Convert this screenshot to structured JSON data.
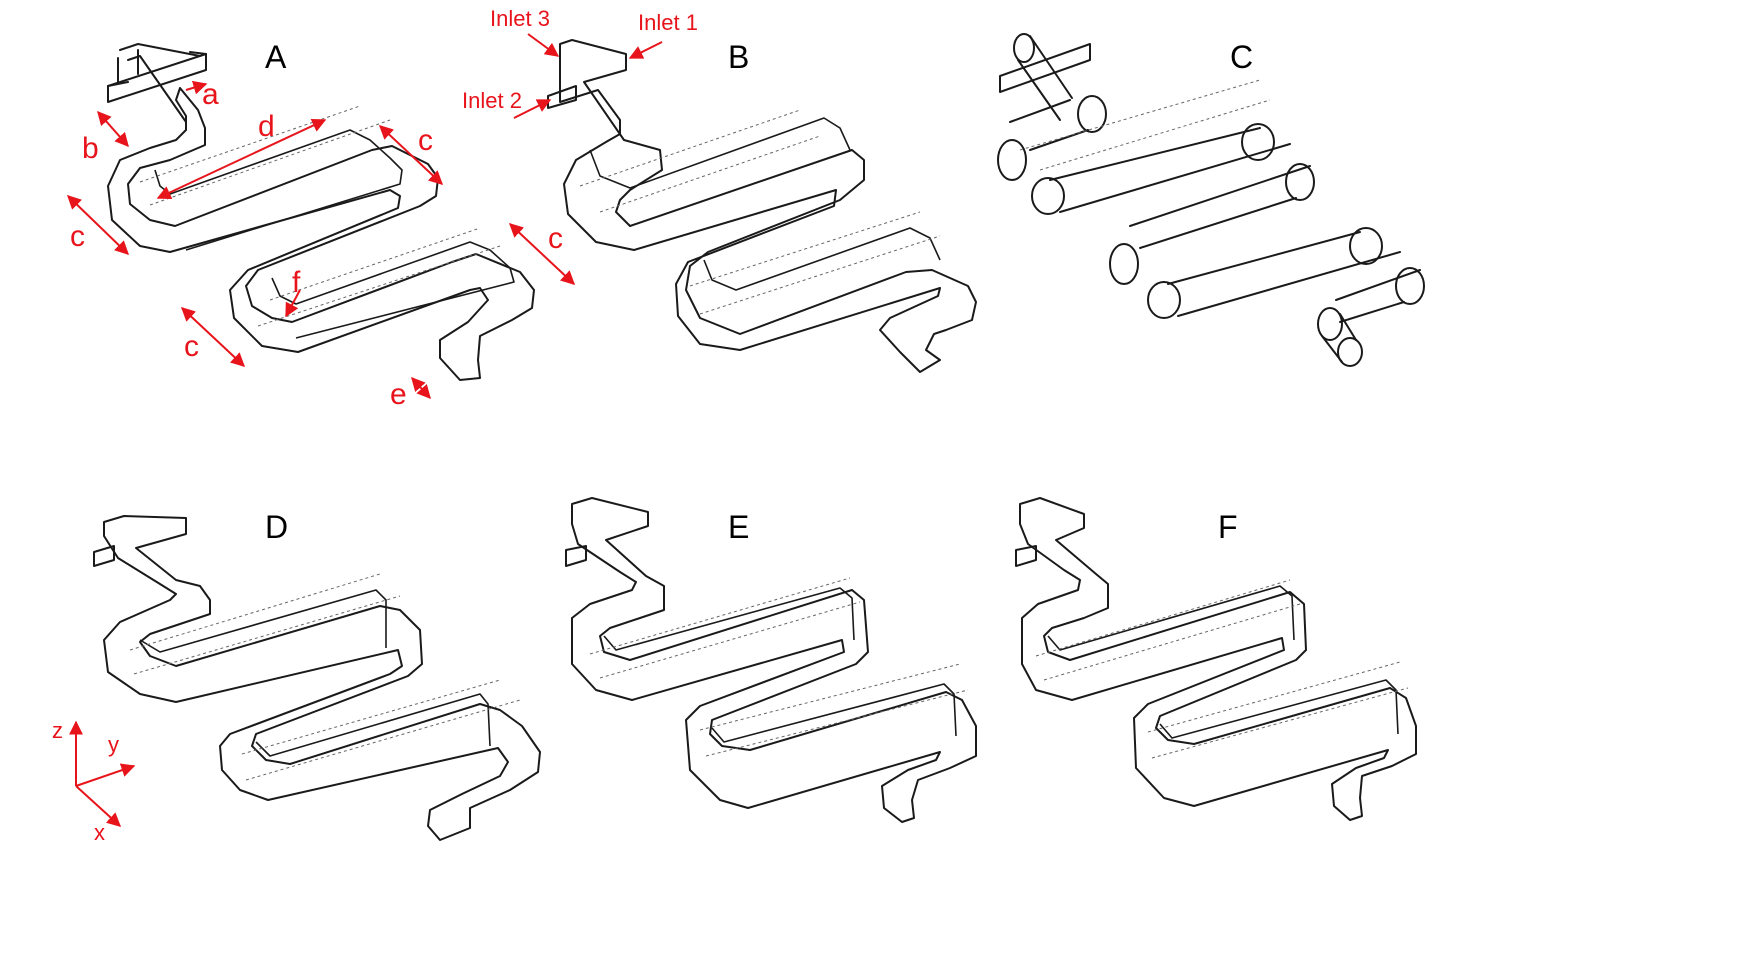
{
  "panels": [
    {
      "letter": "A"
    },
    {
      "letter": "B"
    },
    {
      "letter": "C"
    },
    {
      "letter": "D"
    },
    {
      "letter": "E"
    },
    {
      "letter": "F"
    }
  ],
  "dimension_labels": {
    "a": "a",
    "b": "b",
    "c": "c",
    "d": "d",
    "e": "e",
    "f": "f"
  },
  "inlets": {
    "inlet1": "Inlet 1",
    "inlet2": "Inlet 2",
    "inlet3": "Inlet 3"
  },
  "axes": {
    "x": "x",
    "y": "y",
    "z": "z"
  },
  "colors": {
    "annotation": "#e8141b",
    "line": "#1a1a1a"
  }
}
